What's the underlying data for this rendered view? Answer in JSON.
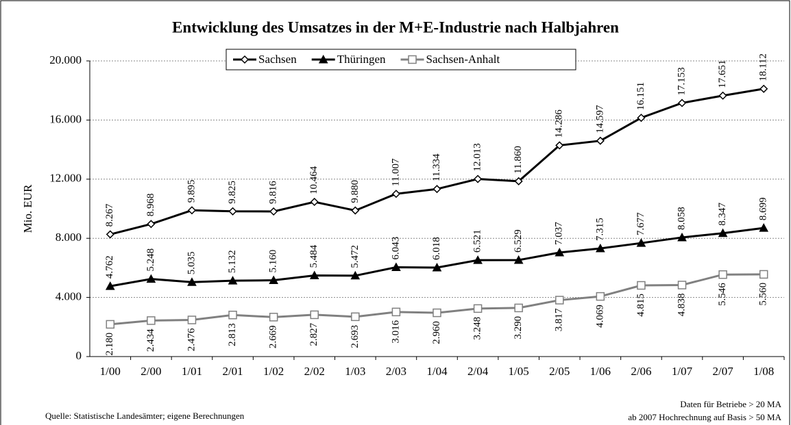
{
  "chart_data": {
    "type": "line",
    "title": "Entwicklung des Umsatzes in der M+E-Industrie nach Halbjahren",
    "y_label": "Mio. EUR",
    "categories": [
      "1/00",
      "2/00",
      "1/01",
      "2/01",
      "1/02",
      "2/02",
      "1/03",
      "2/03",
      "1/04",
      "2/04",
      "1/05",
      "2/05",
      "1/06",
      "2/06",
      "1/07",
      "2/07",
      "1/08"
    ],
    "series": [
      {
        "name": "Sachsen",
        "color": "#000000",
        "marker": "diamond",
        "label_side": "above",
        "values": [
          8267,
          8968,
          9895,
          9825,
          9816,
          10464,
          9880,
          11007,
          11334,
          12013,
          11860,
          14286,
          14597,
          16151,
          17153,
          17651,
          18112
        ],
        "value_labels": [
          "8.267",
          "8.968",
          "9.895",
          "9.825",
          "9.816",
          "10.464",
          "9.880",
          "11.007",
          "11.334",
          "12.013",
          "11.860",
          "14.286",
          "14.597",
          "16.151",
          "17.153",
          "17.651",
          "18.112"
        ]
      },
      {
        "name": "Thüringen",
        "color": "#000000",
        "marker": "triangle",
        "label_side": "above",
        "values": [
          4762,
          5248,
          5035,
          5132,
          5160,
          5484,
          5472,
          6043,
          6018,
          6521,
          6529,
          7037,
          7315,
          7677,
          8058,
          8347,
          8699
        ],
        "value_labels": [
          "4.762",
          "5.248",
          "5.035",
          "5.132",
          "5.160",
          "5.484",
          "5.472",
          "6.043",
          "6.018",
          "6.521",
          "6.529",
          "7.037",
          "7.315",
          "7.677",
          "8.058",
          "8.347",
          "8.699"
        ]
      },
      {
        "name": "Sachsen-Anhalt",
        "color": "#808080",
        "marker": "square",
        "label_side": "below",
        "values": [
          2180,
          2434,
          2476,
          2813,
          2669,
          2827,
          2693,
          3016,
          2960,
          3248,
          3290,
          3817,
          4069,
          4815,
          4838,
          5546,
          5560
        ],
        "value_labels": [
          "2.180",
          "2.434",
          "2.476",
          "2.813",
          "2.669",
          "2.827",
          "2.693",
          "3.016",
          "2.960",
          "3.248",
          "3.290",
          "3.817",
          "4.069",
          "4.815",
          "4.838",
          "5.546",
          "5.560"
        ]
      }
    ],
    "ylim": [
      0,
      20000
    ],
    "yticks": [
      0,
      {
        "value": 4000,
        "label": "4.000"
      },
      {
        "value": 8000,
        "label": "8.000"
      },
      {
        "value": 12000,
        "label": "12.000"
      },
      {
        "value": 16000,
        "label": "16.000"
      },
      {
        "value": 20000,
        "label": "20.000"
      }
    ],
    "grid": true,
    "legend": "top",
    "source": "Quelle: Statistische Landesämter; eigene Berechnungen",
    "notes": [
      "Daten für Betriebe > 20 MA",
      "ab 2007 Hochrechnung auf Basis > 50 MA"
    ]
  }
}
